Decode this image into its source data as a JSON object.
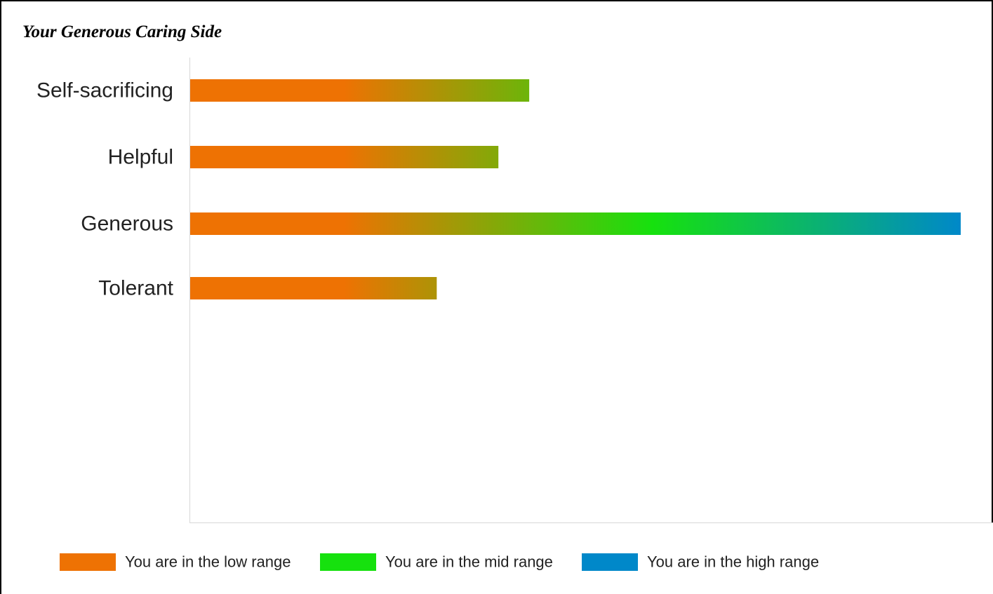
{
  "chart_data": {
    "type": "bar",
    "orientation": "horizontal",
    "title": "Your Generous Caring Side",
    "categories": [
      "Self-sacrificing",
      "Helpful",
      "Generous",
      "Tolerant"
    ],
    "values": [
      44,
      40,
      100,
      32
    ],
    "xlim": [
      0,
      100
    ],
    "grid": false,
    "legend_position": "bottom",
    "legend": [
      {
        "label": "You are in the low range",
        "color": "#ee7203"
      },
      {
        "label": "You are in the mid range",
        "color": "#16e10e"
      },
      {
        "label": "You are in the high range",
        "color": "#0088c9"
      }
    ],
    "gradient_colors": [
      "#ee7203",
      "#16e10e",
      "#0088c9"
    ]
  }
}
